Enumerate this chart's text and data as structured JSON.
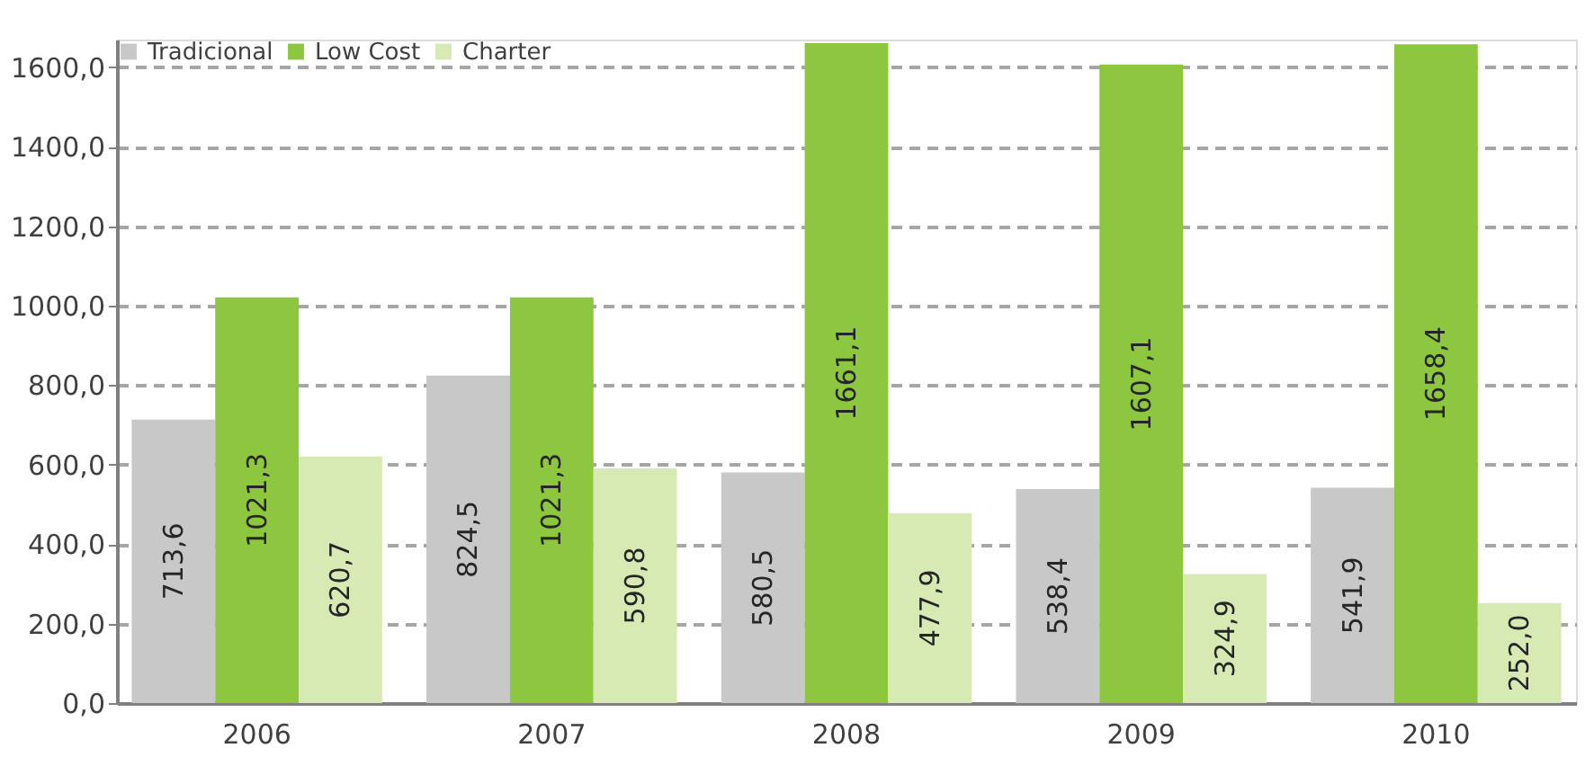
{
  "chart_data": {
    "type": "bar",
    "categories": [
      "2006",
      "2007",
      "2008",
      "2009",
      "2010"
    ],
    "series": [
      {
        "name": "Tradicional",
        "color": "#c8c8c8",
        "values": [
          713.6,
          824.5,
          580.5,
          538.4,
          541.9
        ],
        "value_labels": [
          "713,6",
          "824,5",
          "580,5",
          "538,4",
          "541,9"
        ]
      },
      {
        "name": "Low Cost",
        "color": "#8dc63f",
        "values": [
          1021.3,
          1021.3,
          1661.1,
          1607.1,
          1658.4
        ],
        "value_labels": [
          "1021,3",
          "1021,3",
          "1661,1",
          "1607,1",
          "1658,4"
        ]
      },
      {
        "name": "Charter",
        "color": "#d7eab4",
        "values": [
          620.7,
          590.8,
          477.9,
          324.9,
          252.0
        ],
        "value_labels": [
          "620,7",
          "590,8",
          "477,9",
          "324,9",
          "252,0"
        ]
      }
    ],
    "ylim": [
      0,
      1670
    ],
    "yticks": [
      {
        "value": 0,
        "label": "0,0"
      },
      {
        "value": 200,
        "label": "200,0"
      },
      {
        "value": 400,
        "label": "400,0"
      },
      {
        "value": 600,
        "label": "600,0"
      },
      {
        "value": 800,
        "label": "800,0"
      },
      {
        "value": 1000,
        "label": "1000,0"
      },
      {
        "value": 1200,
        "label": "1200,0"
      },
      {
        "value": 1400,
        "label": "1400,0"
      },
      {
        "value": 1600,
        "label": "1600,0"
      }
    ],
    "grid": "y",
    "legend": "top left"
  }
}
